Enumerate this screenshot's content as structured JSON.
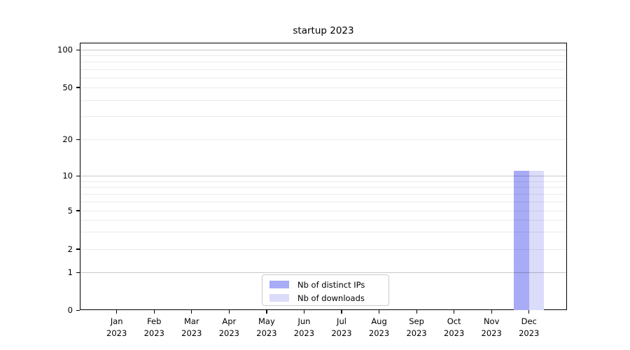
{
  "chart_data": {
    "type": "bar",
    "title": "startup 2023",
    "categories": [
      "Jan",
      "Feb",
      "Mar",
      "Apr",
      "May",
      "Jun",
      "Jul",
      "Aug",
      "Sep",
      "Oct",
      "Nov",
      "Dec"
    ],
    "category_year": "2023",
    "series": [
      {
        "name": "Nb of distinct IPs",
        "color": "#a8abf5",
        "values": [
          0,
          0,
          0,
          0,
          0,
          0,
          0,
          0,
          0,
          0,
          0,
          11
        ]
      },
      {
        "name": "Nb of downloads",
        "color": "#dbdcfa",
        "values": [
          0,
          0,
          0,
          0,
          0,
          0,
          0,
          0,
          0,
          0,
          0,
          11
        ]
      }
    ],
    "xlabel": "",
    "ylabel": "",
    "yscale": "symlog",
    "ylim": [
      0,
      107
    ],
    "yticks": [
      0,
      1,
      2,
      5,
      10,
      20,
      50,
      100
    ],
    "minor_yticks": [
      3,
      4,
      6,
      7,
      8,
      9,
      30,
      40,
      60,
      70,
      80,
      90
    ],
    "decade_ticks": [
      1,
      10,
      100
    ],
    "ytick_fractions": {
      "0": 0.0,
      "1": 0.141,
      "2": 0.228,
      "5": 0.3725,
      "10": 0.5026,
      "20": 0.6387,
      "50": 0.8325,
      "100": 0.9738
    },
    "grid": "horizontal",
    "legend_position": "lower center"
  }
}
